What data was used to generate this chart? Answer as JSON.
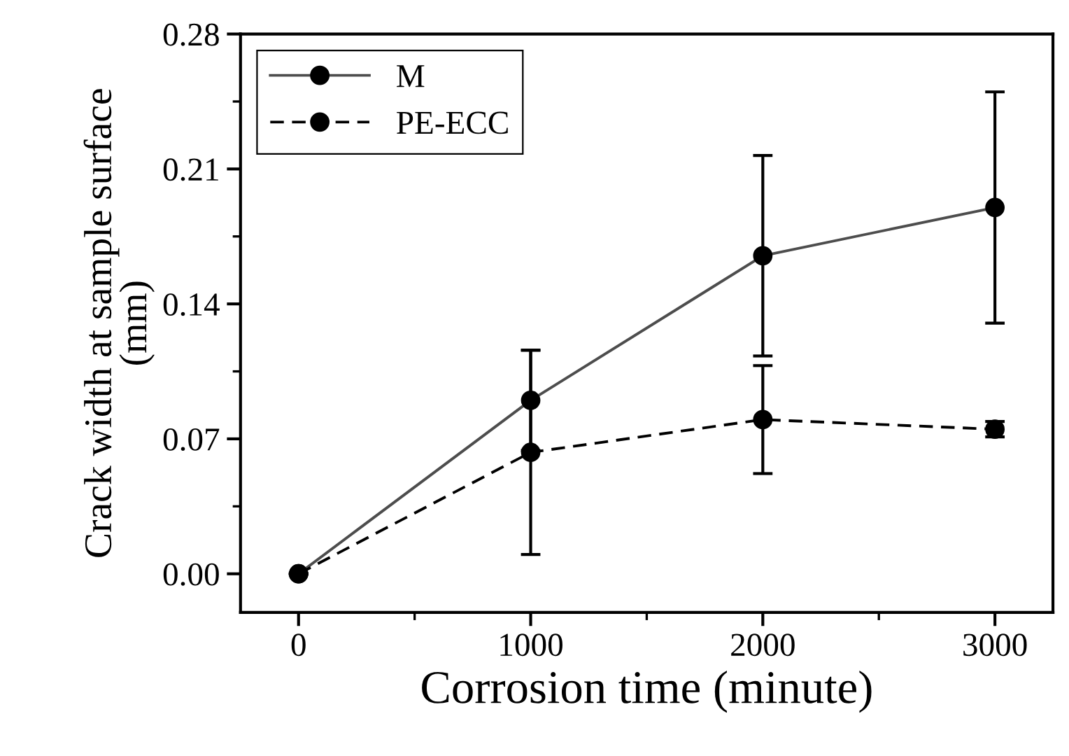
{
  "chart_data": {
    "type": "line",
    "xlabel": "Corrosion time (minute)",
    "ylabel": "Crack width at sample surface\n(mm)",
    "x": [
      0,
      1000,
      2000,
      3000
    ],
    "series": [
      {
        "name": "M",
        "color": "#4d4d4d",
        "values": [
          0,
          0.09,
          0.165,
          0.19
        ],
        "errors": [
          0,
          0.026,
          0.052,
          0.06
        ],
        "line_style": "solid"
      },
      {
        "name": "PE-ECC",
        "color": "#000000",
        "values": [
          0,
          0.063,
          0.08,
          0.075
        ],
        "errors": [
          0,
          0.053,
          0.028,
          0.004
        ],
        "line_style": "dashed"
      }
    ],
    "xlim": [
      -250,
      3250
    ],
    "xticks": [
      0,
      1000,
      2000,
      3000
    ],
    "ylim": [
      -0.02,
      0.28
    ],
    "yticks": [
      {
        "value": 0,
        "label": "0.00"
      },
      0.07,
      0.14,
      0.21,
      0.28
    ],
    "marker": "circle",
    "legend": "top left",
    "grid": false
  }
}
